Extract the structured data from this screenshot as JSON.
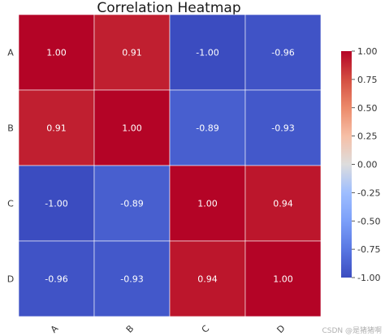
{
  "chart_data": {
    "type": "heatmap",
    "title": "Correlation Heatmap",
    "x_categories": [
      "A",
      "B",
      "C",
      "D"
    ],
    "y_categories": [
      "A",
      "B",
      "C",
      "D"
    ],
    "values": [
      [
        1.0,
        0.91,
        -1.0,
        -0.96
      ],
      [
        0.91,
        1.0,
        -0.89,
        -0.93
      ],
      [
        -1.0,
        -0.89,
        1.0,
        0.94
      ],
      [
        -0.96,
        -0.93,
        0.94,
        1.0
      ]
    ],
    "value_format": "2-decimals",
    "colormap": "coolwarm",
    "vmin": -1.0,
    "vmax": 1.0,
    "colorbar_ticks": [
      1.0,
      0.75,
      0.5,
      0.25,
      0.0,
      -0.25,
      -0.5,
      -0.75,
      -1.0
    ],
    "colorbar_position": "right",
    "x_tick_rotation": 45
  },
  "watermark": "CSDN @是猪猪啊"
}
